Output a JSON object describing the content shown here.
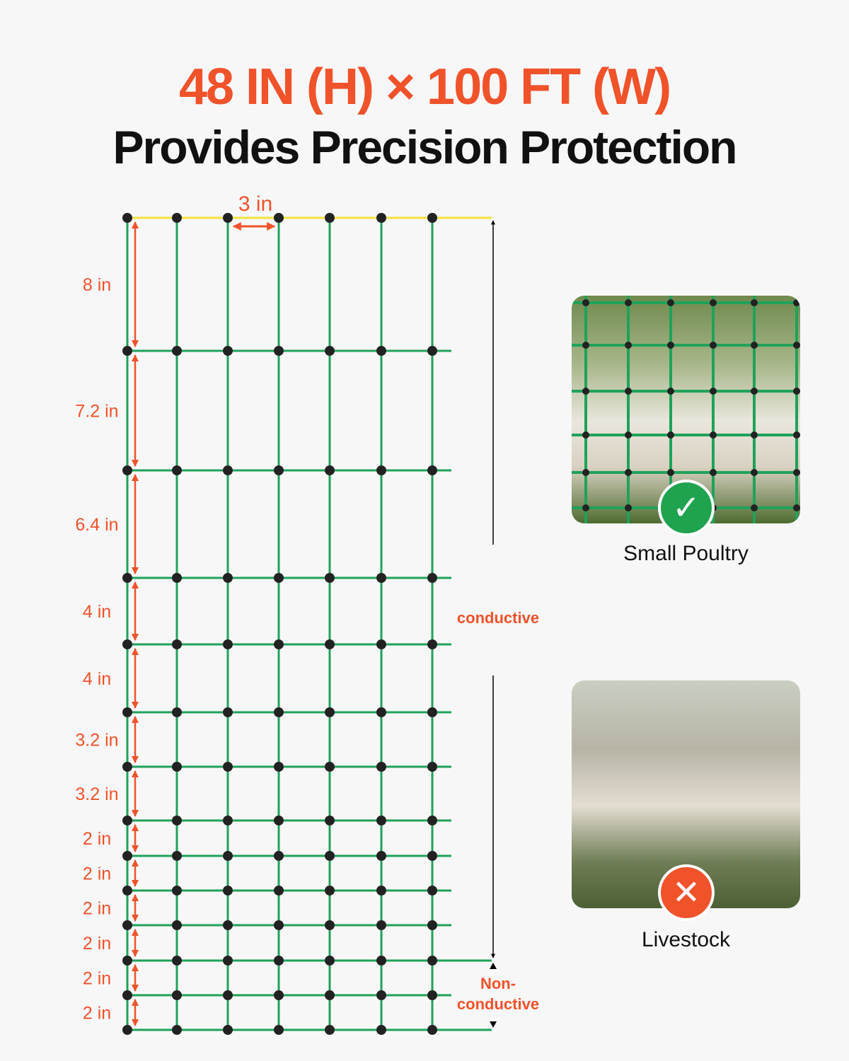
{
  "header": {
    "size_title": "48 IN (H) × 100 FT (W)",
    "subtitle": "Provides Precision Protection"
  },
  "diagram": {
    "spacing_label": "3 in",
    "row_labels": [
      "8 in",
      "7.2 in",
      "6.4 in",
      "4 in",
      "4 in",
      "3.2 in",
      "3.2 in",
      "2 in",
      "2 in",
      "2 in",
      "2 in",
      "2 in",
      "2 in"
    ],
    "conductive_label": "conductive",
    "nonconductive_label_1": "Non-",
    "nonconductive_label_2": "conductive"
  },
  "suitability": [
    {
      "label": "Small Poultry",
      "status": "suitable",
      "icon": "check-icon",
      "color": "#1fa34f"
    },
    {
      "label": "Livestock",
      "status": "not-suitable",
      "icon": "x-icon",
      "color": "#f0522a"
    }
  ],
  "colors": {
    "accent": "#f0522a",
    "wire": "#1fa25a",
    "top_wire": "#f5e13c",
    "node": "#222222"
  }
}
